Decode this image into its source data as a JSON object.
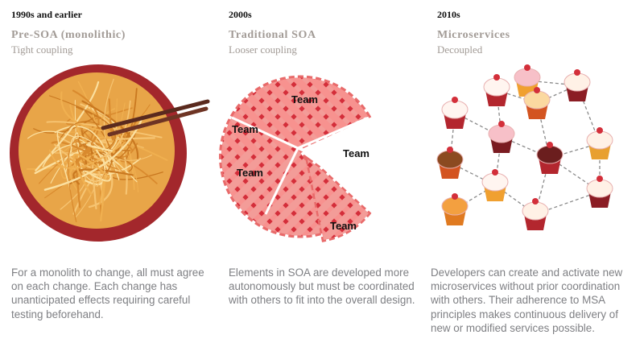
{
  "columns": [
    {
      "era": "1990s  and earlier",
      "title": "Pre-SOA  (monolithic)",
      "subtitle": "Tight coupling",
      "description": "For a monolith to change, all must agree on each change. Each change has unanticipated effects requiring careful testing beforehand.",
      "illustration": "spaghetti-plate"
    },
    {
      "era": "2000s",
      "title": "Traditional  SOA",
      "subtitle": "Looser coupling",
      "description": "Elements in SOA are developed more autonomously but must be coordinated with others to fit into the overall design.",
      "illustration": "lattice-pie",
      "team_labels": [
        "Team",
        "Team",
        "Team",
        "Team",
        "Team"
      ]
    },
    {
      "era": "2010s",
      "title": "Microservices",
      "subtitle": "Decoupled",
      "description": "Developers can create and activate new microservices without prior coordination with others. Their adherence to MSA principles makes continuous delivery of new or modified services possible.",
      "illustration": "cupcake-network"
    }
  ],
  "colors": {
    "title_gray": "#a29b96",
    "body_gray": "#7e7f83",
    "plate_red": "#a3272c",
    "noodle": "#e6a040",
    "pie_crust": "#f08a86",
    "pie_filling": "#d62f3a"
  }
}
